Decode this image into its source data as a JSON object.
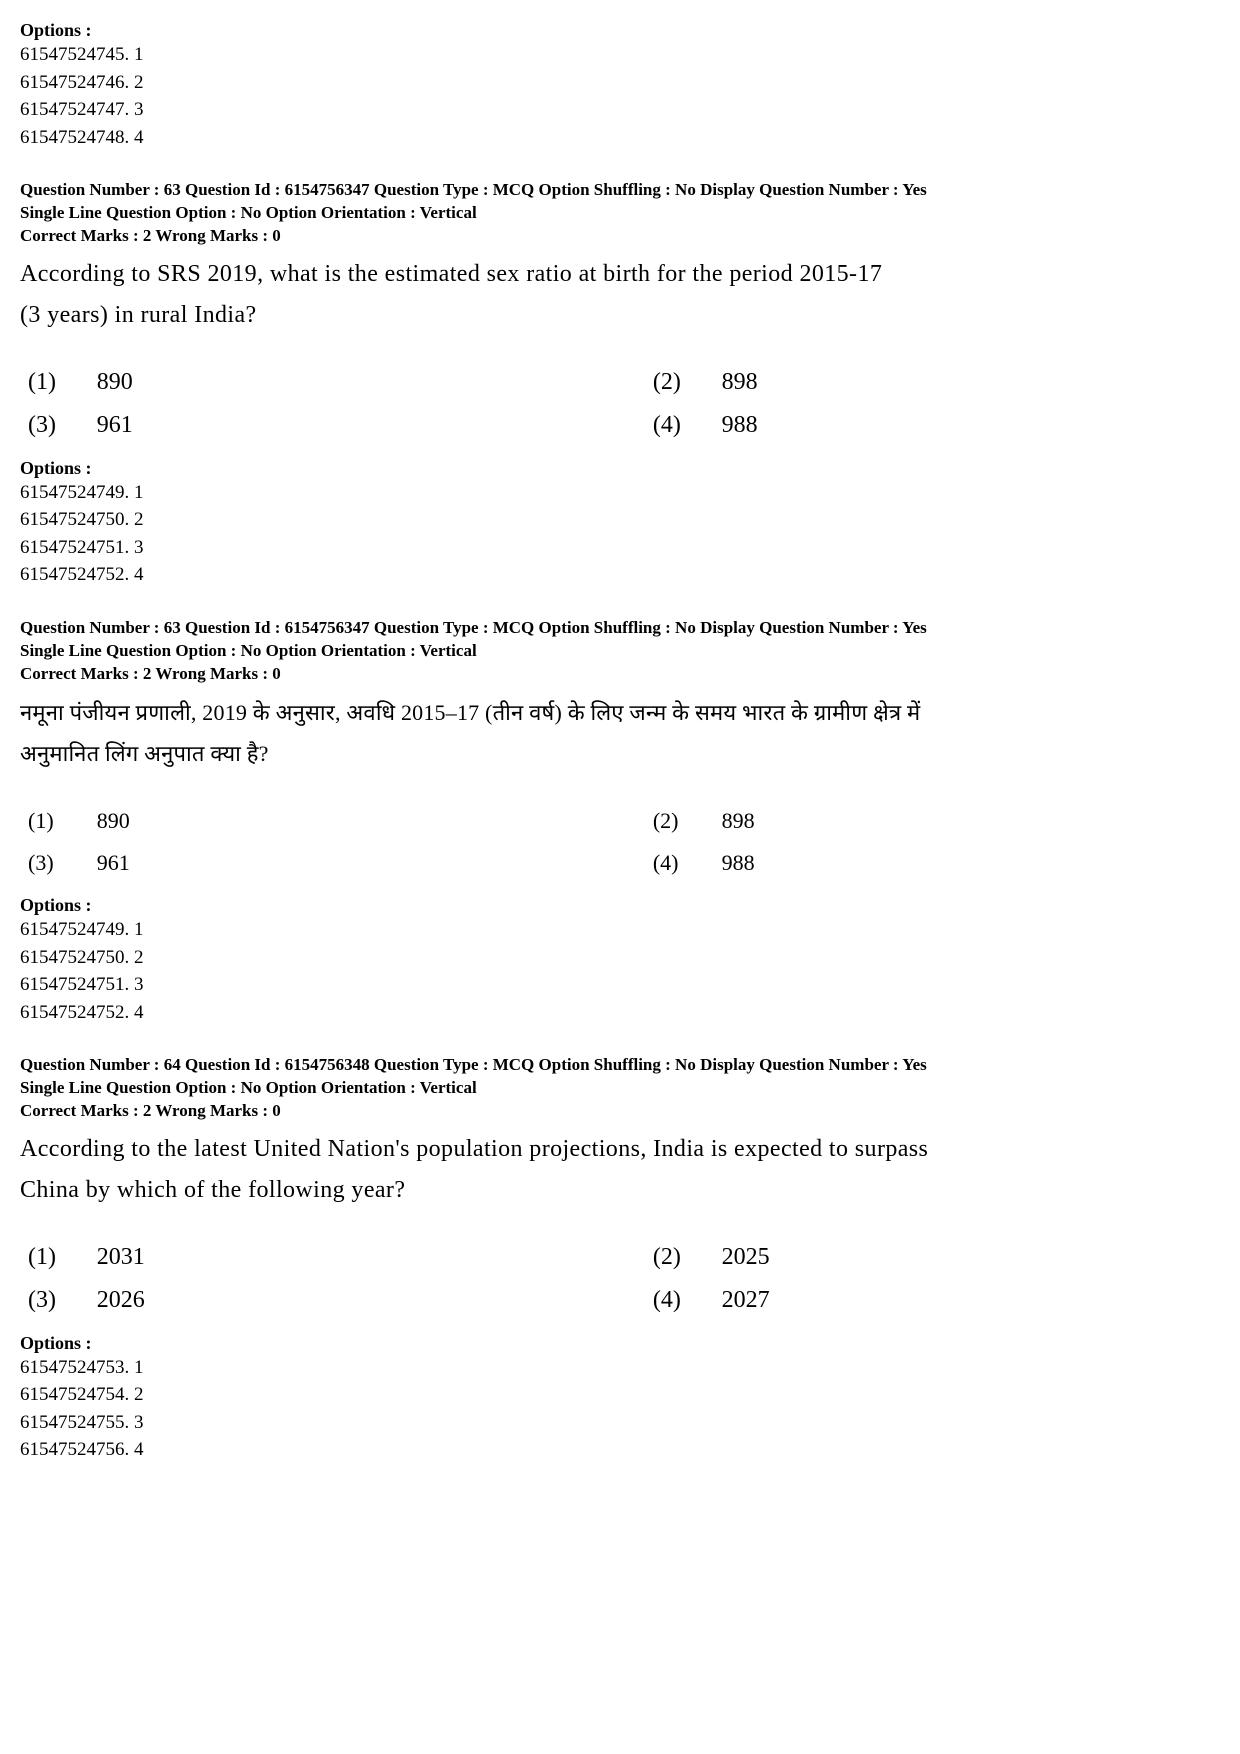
{
  "labels": {
    "options_header": "Options :"
  },
  "block0": {
    "options": [
      "61547524745. 1",
      "61547524746. 2",
      "61547524747. 3",
      "61547524748. 4"
    ]
  },
  "q63en": {
    "meta1": "Question Number : 63  Question Id : 6154756347  Question Type : MCQ  Option Shuffling : No  Display Question Number : Yes",
    "meta2": "Single Line Question Option : No  Option Orientation : Vertical",
    "meta3": "Correct Marks : 2  Wrong Marks : 0",
    "text_line1": "According to SRS 2019, what is the estimated sex ratio at birth for the period 2015-17",
    "text_line2": "(3 years) in rural India?",
    "c1n": "(1)",
    "c1v": "890",
    "c2n": "(2)",
    "c2v": "898",
    "c3n": "(3)",
    "c3v": "961",
    "c4n": "(4)",
    "c4v": "988",
    "options": [
      "61547524749. 1",
      "61547524750. 2",
      "61547524751. 3",
      "61547524752. 4"
    ]
  },
  "q63hi": {
    "meta1": "Question Number : 63  Question Id : 6154756347  Question Type : MCQ  Option Shuffling : No  Display Question Number : Yes",
    "meta2": "Single Line Question Option : No  Option Orientation : Vertical",
    "meta3": "Correct Marks : 2  Wrong Marks : 0",
    "text_line1": "नमूना पंजीयन प्रणाली, 2019 के अनुसार, अवधि 2015–17 (तीन वर्ष) के लिए जन्म के समय भारत के ग्रामीण क्षेत्र में",
    "text_line2": "अनुमानित लिंग अनुपात क्या है?",
    "c1n": "(1)",
    "c1v": "890",
    "c2n": "(2)",
    "c2v": "898",
    "c3n": "(3)",
    "c3v": "961",
    "c4n": "(4)",
    "c4v": "988",
    "options": [
      "61547524749. 1",
      "61547524750. 2",
      "61547524751. 3",
      "61547524752. 4"
    ]
  },
  "q64": {
    "meta1": "Question Number : 64  Question Id : 6154756348  Question Type : MCQ  Option Shuffling : No  Display Question Number : Yes",
    "meta2": "Single Line Question Option : No  Option Orientation : Vertical",
    "meta3": "Correct Marks : 2  Wrong Marks : 0",
    "text_line1": "According to the latest United Nation's population projections, India is expected to surpass",
    "text_line2": "China by which of the following year?",
    "c1n": "(1)",
    "c1v": "2031",
    "c2n": "(2)",
    "c2v": "2025",
    "c3n": "(3)",
    "c3v": "2026",
    "c4n": "(4)",
    "c4v": "2027",
    "options": [
      "61547524753. 1",
      "61547524754. 2",
      "61547524755. 3",
      "61547524756. 4"
    ]
  }
}
